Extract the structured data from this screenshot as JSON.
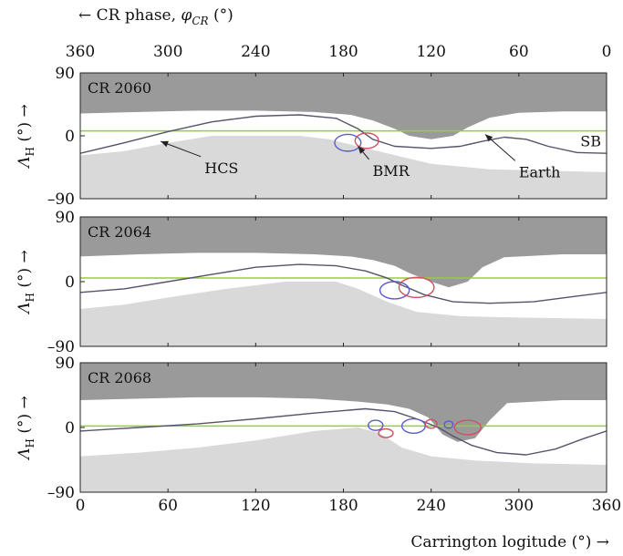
{
  "chart_data": {
    "type": "line",
    "top_axis": {
      "label_main": "← CR phase, ",
      "label_symbol": "φ",
      "label_subscript": "CR",
      "label_unit": " (°)",
      "ticks": [
        360,
        300,
        240,
        180,
        120,
        60,
        0
      ],
      "tick_labels": [
        "360",
        "300",
        "240",
        "180",
        "120",
        "60",
        "0"
      ]
    },
    "bottom_axis": {
      "label": "Carrington logitude (°) →",
      "ticks": [
        0,
        60,
        120,
        180,
        240,
        300,
        360
      ],
      "tick_labels": [
        "0",
        "60",
        "120",
        "180",
        "240",
        "300",
        "360"
      ],
      "xlim": [
        0,
        360
      ]
    },
    "y_axis": {
      "label_symbol": "Λ",
      "label_subscript": "H",
      "label_unit": " (°) →",
      "ticks": [
        90,
        0,
        -90
      ],
      "tick_labels": [
        "90",
        "0",
        "–90"
      ],
      "ylim": [
        -90,
        90
      ]
    },
    "colors": {
      "north_polar": "#9a9a9a",
      "south_polar": "#d9d9d9",
      "open_band": "#ffffff",
      "hcs": "#55556a",
      "earth": "#9acd32",
      "bmr_negative": "#5a5ad0",
      "bmr_positive": "#d05060"
    },
    "panels": [
      {
        "label": "CR 2060",
        "earth_lat": 7,
        "north_boundary": [
          [
            0,
            32
          ],
          [
            40,
            34
          ],
          [
            80,
            36
          ],
          [
            120,
            36
          ],
          [
            160,
            34
          ],
          [
            185,
            30
          ],
          [
            200,
            22
          ],
          [
            215,
            10
          ],
          [
            225,
            0
          ],
          [
            240,
            -5
          ],
          [
            255,
            0
          ],
          [
            265,
            12
          ],
          [
            280,
            26
          ],
          [
            300,
            33
          ],
          [
            330,
            35
          ],
          [
            360,
            35
          ]
        ],
        "south_boundary": [
          [
            0,
            -28
          ],
          [
            30,
            -22
          ],
          [
            60,
            -10
          ],
          [
            90,
            0
          ],
          [
            120,
            0
          ],
          [
            150,
            0
          ],
          [
            170,
            -5
          ],
          [
            190,
            -15
          ],
          [
            210,
            -25
          ],
          [
            240,
            -40
          ],
          [
            280,
            -48
          ],
          [
            320,
            -50
          ],
          [
            360,
            -52
          ]
        ],
        "hcs": [
          [
            0,
            -25
          ],
          [
            30,
            -10
          ],
          [
            60,
            6
          ],
          [
            90,
            20
          ],
          [
            120,
            28
          ],
          [
            150,
            30
          ],
          [
            175,
            25
          ],
          [
            190,
            10
          ],
          [
            200,
            -5
          ],
          [
            215,
            -15
          ],
          [
            240,
            -18
          ],
          [
            260,
            -15
          ],
          [
            275,
            -8
          ],
          [
            290,
            -2
          ],
          [
            305,
            -5
          ],
          [
            320,
            -15
          ],
          [
            340,
            -24
          ],
          [
            360,
            -25
          ]
        ],
        "bmrs": [
          {
            "lon": 183,
            "lat": -10,
            "rx": 9,
            "ry": 12,
            "polarity": "negative"
          },
          {
            "lon": 196,
            "lat": -7,
            "rx": 8,
            "ry": 11,
            "polarity": "positive"
          }
        ],
        "annotations": [
          {
            "text": "HCS",
            "text_lon": 85,
            "text_lat": -48,
            "tip_lon": 55,
            "tip_lat": -8
          },
          {
            "text": "BMR",
            "text_lon": 200,
            "text_lat": -52,
            "tip_lon": 190,
            "tip_lat": -15
          },
          {
            "text": "Earth",
            "text_lon": 300,
            "text_lat": -54,
            "tip_lon": 277,
            "tip_lat": 2
          }
        ],
        "sb_label": "SB"
      },
      {
        "label": "CR 2064",
        "earth_lat": 5,
        "north_boundary": [
          [
            0,
            35
          ],
          [
            40,
            38
          ],
          [
            80,
            40
          ],
          [
            120,
            40
          ],
          [
            160,
            38
          ],
          [
            185,
            35
          ],
          [
            200,
            30
          ],
          [
            215,
            22
          ],
          [
            225,
            12
          ],
          [
            240,
            0
          ],
          [
            252,
            -8
          ],
          [
            265,
            0
          ],
          [
            275,
            20
          ],
          [
            290,
            34
          ],
          [
            330,
            38
          ],
          [
            360,
            38
          ]
        ],
        "south_boundary": [
          [
            0,
            -38
          ],
          [
            30,
            -32
          ],
          [
            60,
            -22
          ],
          [
            100,
            -10
          ],
          [
            140,
            0
          ],
          [
            175,
            0
          ],
          [
            190,
            -10
          ],
          [
            210,
            -28
          ],
          [
            230,
            -42
          ],
          [
            260,
            -48
          ],
          [
            300,
            -50
          ],
          [
            360,
            -52
          ]
        ],
        "hcs": [
          [
            0,
            -15
          ],
          [
            30,
            -10
          ],
          [
            60,
            0
          ],
          [
            90,
            10
          ],
          [
            120,
            20
          ],
          [
            150,
            24
          ],
          [
            175,
            22
          ],
          [
            195,
            15
          ],
          [
            210,
            5
          ],
          [
            220,
            -5
          ],
          [
            235,
            -18
          ],
          [
            255,
            -28
          ],
          [
            280,
            -30
          ],
          [
            310,
            -28
          ],
          [
            340,
            -20
          ],
          [
            360,
            -15
          ]
        ],
        "bmrs": [
          {
            "lon": 215,
            "lat": -12,
            "rx": 10,
            "ry": 12,
            "polarity": "negative"
          },
          {
            "lon": 230,
            "lat": -8,
            "rx": 12,
            "ry": 14,
            "polarity": "positive"
          }
        ],
        "annotations": [],
        "sb_label": ""
      },
      {
        "label": "CR 2068",
        "earth_lat": 2,
        "north_boundary": [
          [
            0,
            38
          ],
          [
            40,
            40
          ],
          [
            80,
            42
          ],
          [
            120,
            42
          ],
          [
            160,
            40
          ],
          [
            190,
            36
          ],
          [
            210,
            32
          ],
          [
            225,
            26
          ],
          [
            238,
            14
          ],
          [
            248,
            -10
          ],
          [
            258,
            -20
          ],
          [
            270,
            -15
          ],
          [
            280,
            10
          ],
          [
            292,
            34
          ],
          [
            330,
            38
          ],
          [
            360,
            38
          ]
        ],
        "south_boundary": [
          [
            0,
            -40
          ],
          [
            40,
            -35
          ],
          [
            80,
            -28
          ],
          [
            120,
            -18
          ],
          [
            160,
            -5
          ],
          [
            190,
            0
          ],
          [
            205,
            -8
          ],
          [
            220,
            -28
          ],
          [
            240,
            -40
          ],
          [
            270,
            -46
          ],
          [
            310,
            -50
          ],
          [
            360,
            -52
          ]
        ],
        "hcs": [
          [
            0,
            -5
          ],
          [
            40,
            0
          ],
          [
            80,
            5
          ],
          [
            120,
            12
          ],
          [
            160,
            20
          ],
          [
            195,
            26
          ],
          [
            215,
            22
          ],
          [
            230,
            12
          ],
          [
            245,
            0
          ],
          [
            255,
            -12
          ],
          [
            268,
            -25
          ],
          [
            285,
            -35
          ],
          [
            305,
            -38
          ],
          [
            325,
            -30
          ],
          [
            345,
            -15
          ],
          [
            360,
            -5
          ]
        ],
        "bmrs": [
          {
            "lon": 202,
            "lat": 3,
            "rx": 5,
            "ry": 7,
            "polarity": "negative"
          },
          {
            "lon": 209,
            "lat": -8,
            "rx": 5,
            "ry": 6,
            "polarity": "positive"
          },
          {
            "lon": 228,
            "lat": 2,
            "rx": 8,
            "ry": 10,
            "polarity": "negative"
          },
          {
            "lon": 240,
            "lat": 5,
            "rx": 4,
            "ry": 6,
            "polarity": "positive"
          },
          {
            "lon": 252,
            "lat": 4,
            "rx": 3,
            "ry": 5,
            "polarity": "negative"
          },
          {
            "lon": 265,
            "lat": 0,
            "rx": 9,
            "ry": 10,
            "polarity": "positive"
          }
        ],
        "annotations": [],
        "sb_label": ""
      }
    ]
  }
}
